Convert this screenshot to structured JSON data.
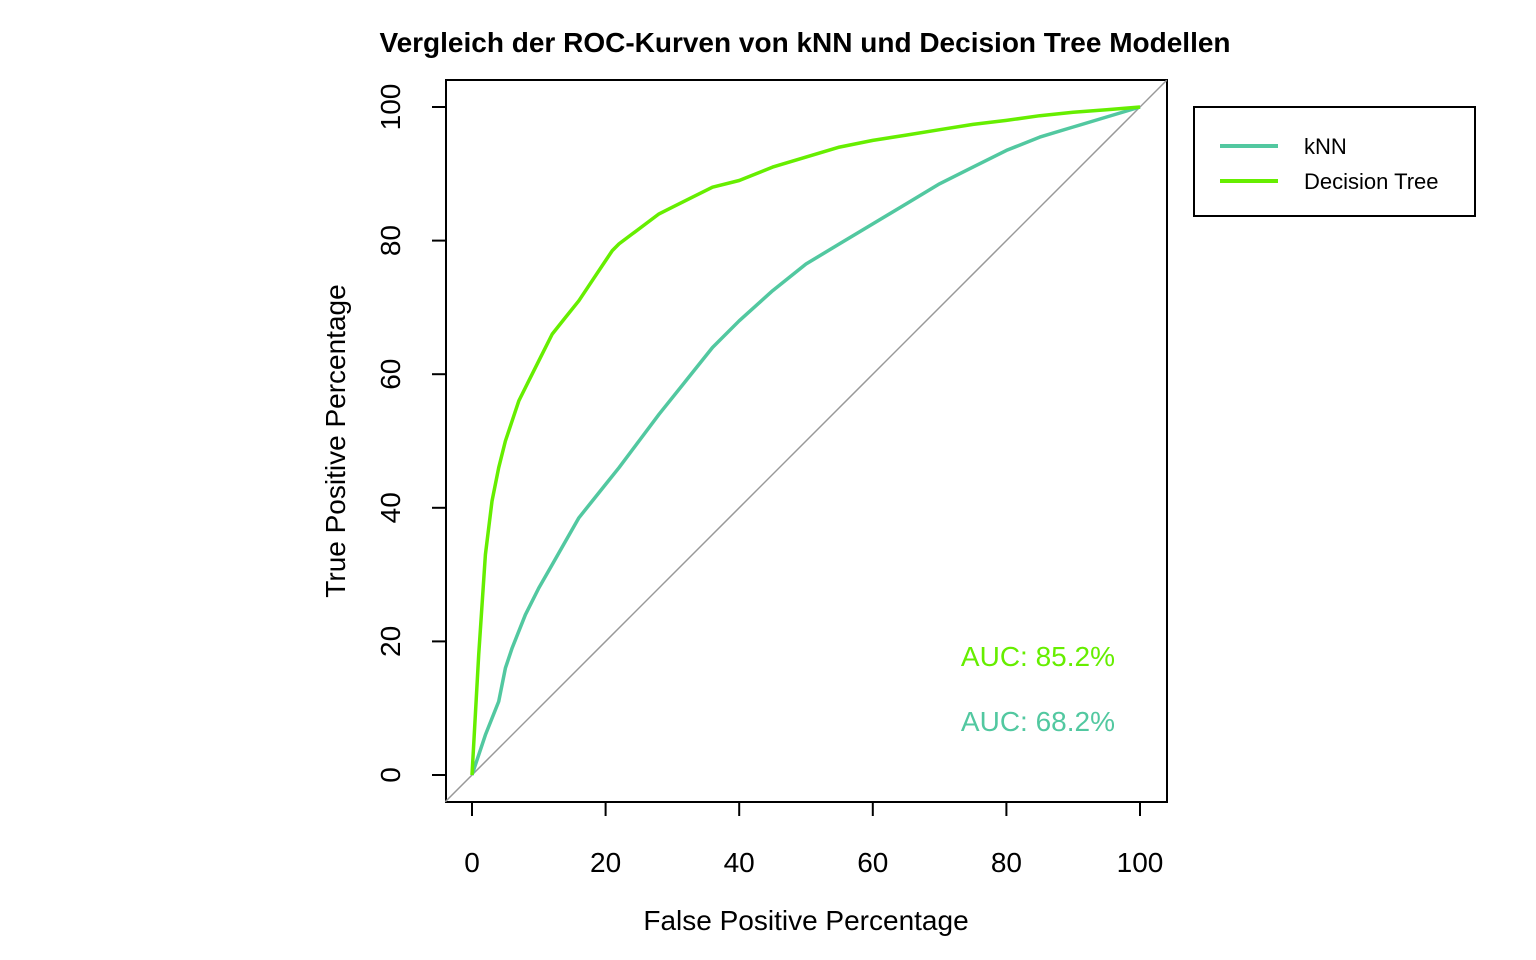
{
  "chart_data": {
    "type": "line",
    "title": "Vergleich der ROC-Kurven von kNN und Decision Tree Modellen",
    "xlabel": "False Positive Percentage",
    "ylabel": "True Positive Percentage",
    "xlim": [
      0,
      100
    ],
    "ylim": [
      0,
      100
    ],
    "xticks": [
      "0",
      "20",
      "40",
      "60",
      "80",
      "100"
    ],
    "yticks": [
      "0",
      "20",
      "40",
      "60",
      "80",
      "100"
    ],
    "grid": false,
    "legend_position": "top-right outside",
    "reference_line": {
      "x": [
        0,
        100
      ],
      "y": [
        0,
        100
      ],
      "color": "#999999"
    },
    "series": [
      {
        "name": "kNN",
        "color": "#52C8A0",
        "x": [
          0,
          2,
          4,
          5,
          6,
          8,
          10,
          12,
          14,
          16,
          18,
          20,
          22,
          25,
          28,
          32,
          36,
          40,
          45,
          50,
          55,
          60,
          65,
          70,
          75,
          80,
          85,
          90,
          95,
          100
        ],
        "y": [
          0,
          6,
          11,
          16,
          19,
          24,
          28,
          31.5,
          35,
          38.5,
          41,
          43.5,
          46,
          50,
          54,
          59,
          64,
          68,
          72.5,
          76.5,
          79.5,
          82.5,
          85.5,
          88.5,
          91,
          93.5,
          95.5,
          97,
          98.5,
          100
        ]
      },
      {
        "name": "Decision Tree",
        "color": "#66EE00",
        "x": [
          0,
          1,
          2,
          3,
          4,
          5,
          6,
          7,
          8,
          10,
          12,
          14,
          16,
          18,
          20,
          21,
          22,
          24,
          26,
          28,
          30,
          33,
          36,
          40,
          45,
          50,
          55,
          60,
          65,
          70,
          75,
          80,
          85,
          90,
          95,
          100
        ],
        "y": [
          0,
          18,
          33,
          41,
          46,
          50,
          53,
          56,
          58,
          62,
          66,
          68.5,
          71,
          74,
          77,
          78.5,
          79.5,
          81,
          82.5,
          84,
          85,
          86.5,
          88,
          89,
          91,
          92.5,
          94,
          95,
          95.8,
          96.6,
          97.4,
          98,
          98.7,
          99.2,
          99.6,
          100
        ]
      }
    ],
    "annotations": [
      {
        "text": "AUC: 85.2%",
        "color": "#66EE00"
      },
      {
        "text": "AUC: 68.2%",
        "color": "#52C8A0"
      }
    ]
  }
}
